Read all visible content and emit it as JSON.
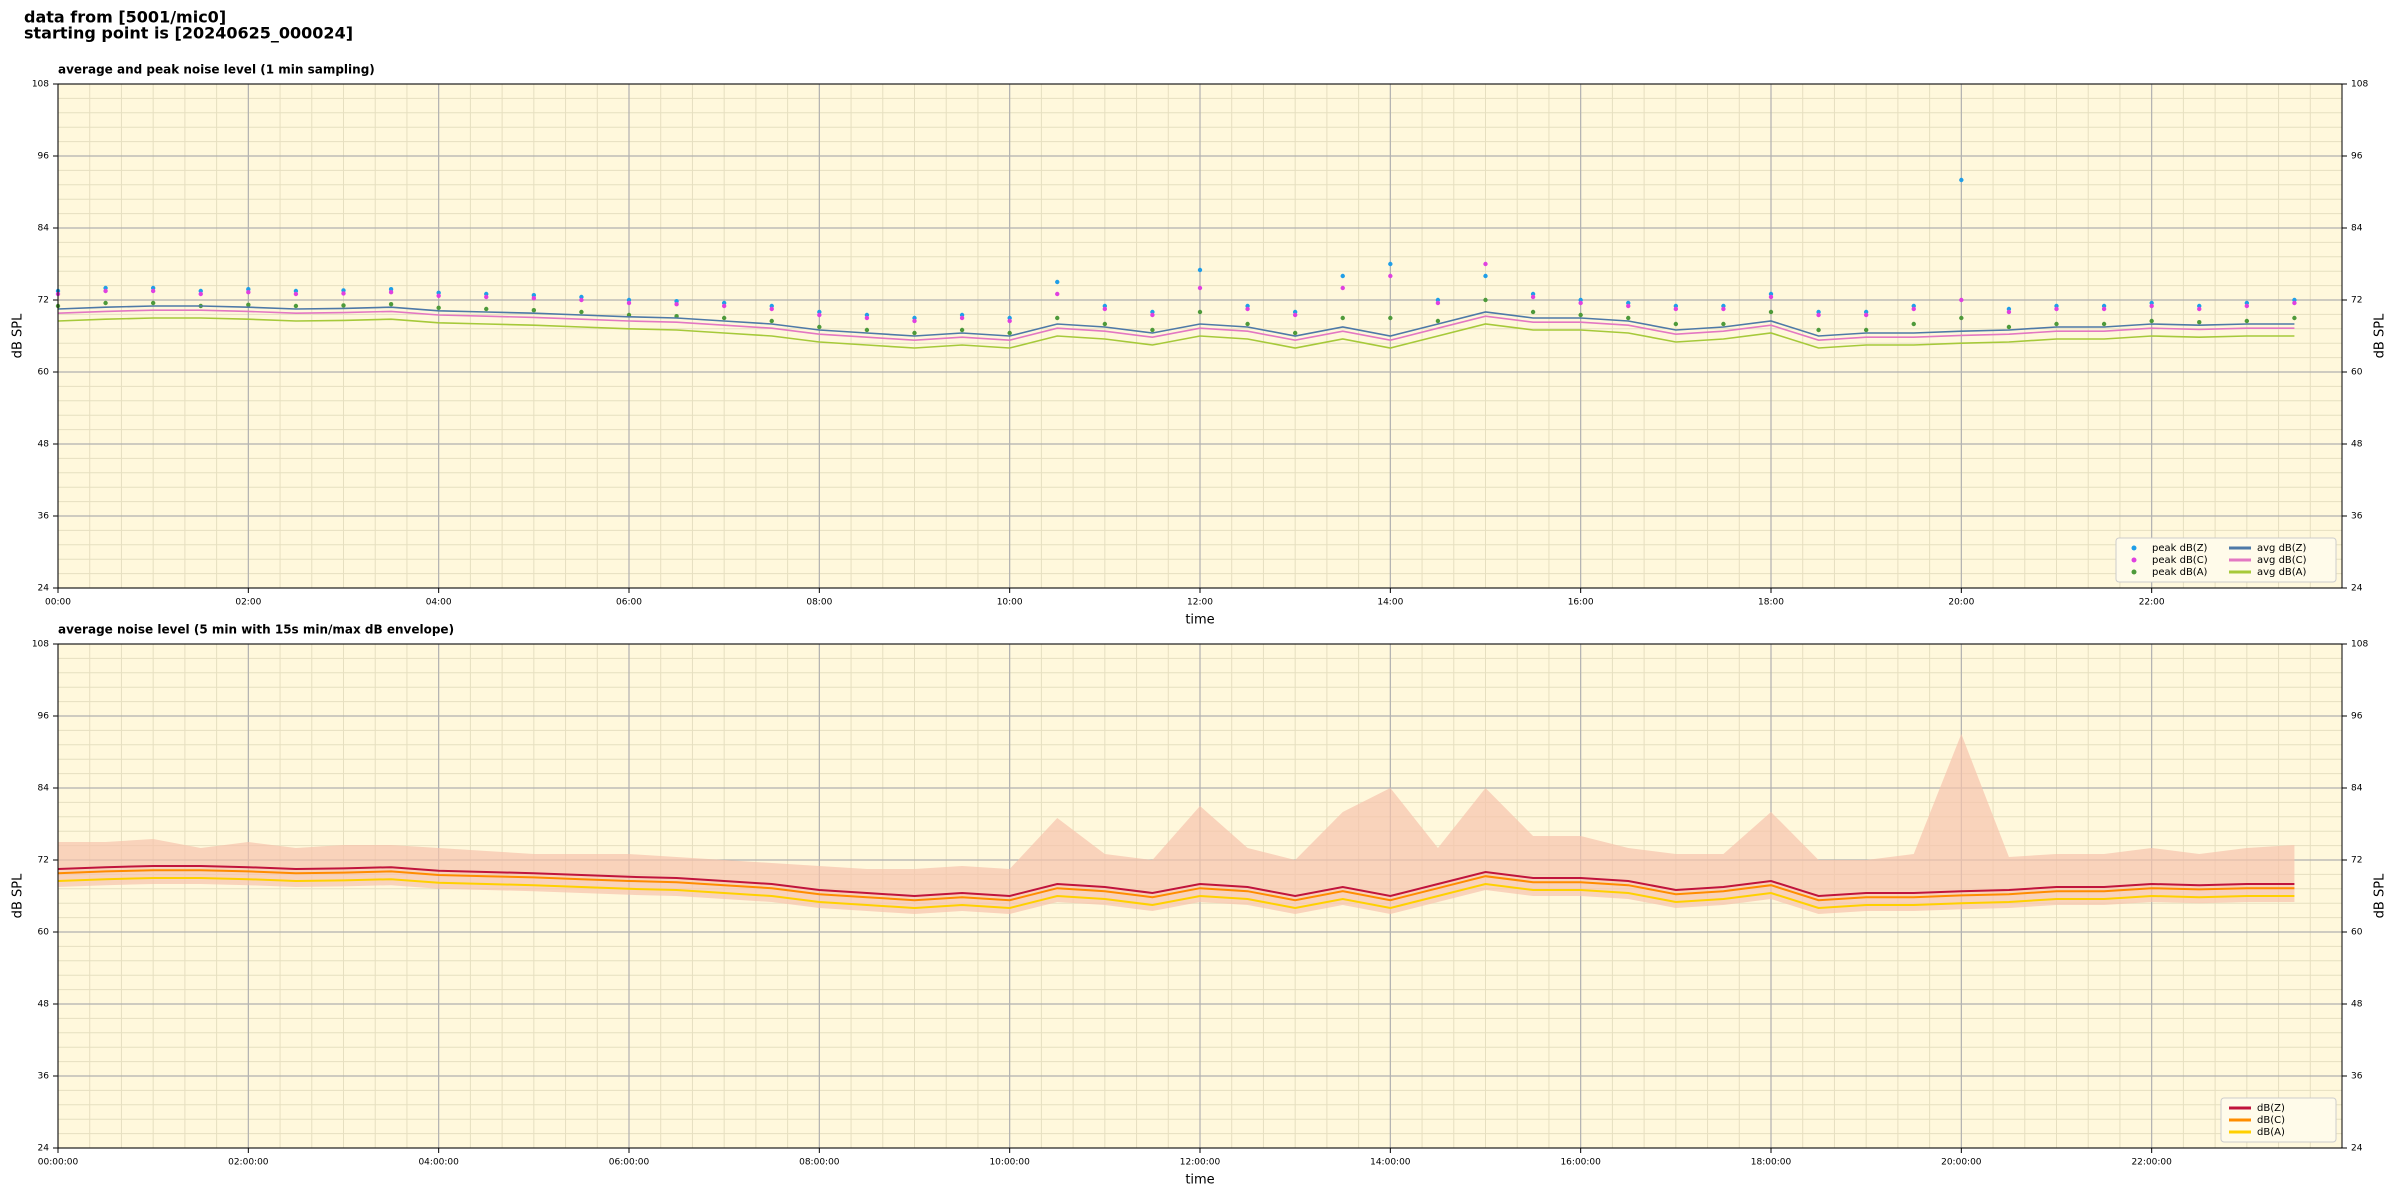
{
  "header": {
    "title": [
      "data from [5001/mic0]",
      "starting point is [20240625_000024]"
    ]
  },
  "chart_data": [
    {
      "type": "line",
      "title": "average and peak noise level (1 min sampling)",
      "xlabel": "time",
      "ylabel": "dB SPL",
      "xlim": [
        0,
        24
      ],
      "ylim": [
        24,
        108
      ],
      "xticks": [
        {
          "value": 0,
          "label": "00:00"
        },
        {
          "value": 2,
          "label": "02:00"
        },
        {
          "value": 4,
          "label": "04:00"
        },
        {
          "value": 6,
          "label": "06:00"
        },
        {
          "value": 8,
          "label": "08:00"
        },
        {
          "value": 10,
          "label": "10:00"
        },
        {
          "value": 12,
          "label": "12:00"
        },
        {
          "value": 14,
          "label": "14:00"
        },
        {
          "value": 16,
          "label": "16:00"
        },
        {
          "value": 18,
          "label": "18:00"
        },
        {
          "value": 20,
          "label": "20:00"
        },
        {
          "value": 22,
          "label": "22:00"
        }
      ],
      "yticks": [
        24,
        36,
        48,
        60,
        72,
        84,
        96,
        108
      ],
      "grid": true,
      "legend": "lower right",
      "legend_columns": 2,
      "x": [
        0,
        0.5,
        1,
        1.5,
        2,
        2.5,
        3,
        3.5,
        4,
        4.5,
        5,
        5.5,
        6,
        6.5,
        7,
        7.5,
        8,
        8.5,
        9,
        9.5,
        10,
        10.5,
        11,
        11.5,
        12,
        12.5,
        13,
        13.5,
        14,
        14.5,
        15,
        15.5,
        16,
        16.5,
        17,
        17.5,
        18,
        18.5,
        19,
        19.5,
        20,
        20.5,
        21,
        21.5,
        22,
        22.5,
        23,
        23.5
      ],
      "series": [
        {
          "name": "peak dB(Z)",
          "color": "#1f9ee8",
          "mode": "markers",
          "values": [
            73.5,
            74,
            74,
            73.5,
            73.8,
            73.5,
            73.6,
            73.8,
            73.2,
            73,
            72.8,
            72.5,
            72,
            71.8,
            71.5,
            71,
            70,
            69.5,
            69,
            69.5,
            69,
            75,
            71,
            70,
            77,
            71,
            70,
            76,
            78,
            72,
            76,
            73,
            72,
            71.5,
            71,
            71,
            73,
            70,
            70,
            71,
            92,
            70.5,
            71,
            71,
            71.5,
            71,
            71.5,
            72
          ]
        },
        {
          "name": "peak dB(C)",
          "color": "#e040e0",
          "mode": "markers",
          "values": [
            73,
            73.5,
            73.5,
            73,
            73.3,
            73,
            73.1,
            73.3,
            72.7,
            72.5,
            72.3,
            72,
            71.5,
            71.3,
            71,
            70.5,
            69.5,
            69,
            68.5,
            69,
            68.5,
            73,
            70.5,
            69.5,
            74,
            70.5,
            69.5,
            74,
            76,
            71.5,
            78,
            72.5,
            71.5,
            71,
            70.5,
            70.5,
            72.5,
            69.5,
            69.5,
            70.5,
            72,
            70,
            70.5,
            70.5,
            71,
            70.5,
            71,
            71.5
          ]
        },
        {
          "name": "peak dB(A)",
          "color": "#4e9a3a",
          "mode": "markers",
          "values": [
            71,
            71.5,
            71.5,
            71,
            71.2,
            71,
            71.1,
            71.3,
            70.7,
            70.5,
            70.3,
            70,
            69.5,
            69.3,
            69,
            68.5,
            67.5,
            67,
            66.5,
            67,
            66.5,
            69,
            68,
            67,
            70,
            68,
            66.5,
            69,
            69,
            68.5,
            72,
            70,
            69.5,
            69,
            68,
            68,
            70,
            67,
            67,
            68,
            69,
            67.5,
            68,
            68,
            68.5,
            68.3,
            68.5,
            69
          ]
        },
        {
          "name": "avg dB(Z)",
          "color": "#4e79a7",
          "mode": "line",
          "values": [
            70.5,
            70.8,
            71,
            71,
            70.8,
            70.5,
            70.6,
            70.8,
            70.2,
            70,
            69.8,
            69.5,
            69.2,
            69,
            68.5,
            68,
            67,
            66.5,
            66,
            66.5,
            66,
            68,
            67.5,
            66.5,
            68,
            67.5,
            66,
            67.5,
            66,
            68,
            70,
            69,
            69,
            68.5,
            67,
            67.5,
            68.5,
            66,
            66.5,
            66.5,
            66.8,
            67,
            67.5,
            67.5,
            68,
            67.8,
            68,
            68
          ]
        },
        {
          "name": "avg dB(C)",
          "color": "#e377c2",
          "mode": "line",
          "values": [
            69.8,
            70.1,
            70.3,
            70.3,
            70.1,
            69.8,
            69.9,
            70.1,
            69.5,
            69.3,
            69.1,
            68.8,
            68.5,
            68.3,
            67.8,
            67.3,
            66.3,
            65.8,
            65.3,
            65.8,
            65.3,
            67.3,
            66.8,
            65.8,
            67.3,
            66.8,
            65.3,
            66.8,
            65.3,
            67.3,
            69.3,
            68.3,
            68.3,
            67.8,
            66.3,
            66.8,
            67.8,
            65.3,
            65.8,
            65.8,
            66.1,
            66.3,
            66.8,
            66.8,
            67.3,
            67.1,
            67.3,
            67.3
          ]
        },
        {
          "name": "avg dB(A)",
          "color": "#a6c93a",
          "mode": "line",
          "values": [
            68.5,
            68.8,
            69,
            69,
            68.8,
            68.5,
            68.6,
            68.8,
            68.2,
            68,
            67.8,
            67.5,
            67.2,
            67,
            66.5,
            66,
            65,
            64.5,
            64,
            64.5,
            64,
            66,
            65.5,
            64.5,
            66,
            65.5,
            64,
            65.5,
            64,
            66,
            68,
            67,
            67,
            66.5,
            65,
            65.5,
            66.5,
            64,
            64.5,
            64.5,
            64.8,
            65,
            65.5,
            65.5,
            66,
            65.8,
            66,
            66
          ]
        }
      ]
    },
    {
      "type": "line",
      "title": "average noise level (5 min with 15s min/max dB envelope)",
      "xlabel": "time",
      "ylabel": "dB SPL",
      "xlim": [
        0,
        24
      ],
      "ylim": [
        24,
        108
      ],
      "xticks": [
        {
          "value": 0,
          "label": "00:00:00"
        },
        {
          "value": 2,
          "label": "02:00:00"
        },
        {
          "value": 4,
          "label": "04:00:00"
        },
        {
          "value": 6,
          "label": "06:00:00"
        },
        {
          "value": 8,
          "label": "08:00:00"
        },
        {
          "value": 10,
          "label": "10:00:00"
        },
        {
          "value": 12,
          "label": "12:00:00"
        },
        {
          "value": 14,
          "label": "14:00:00"
        },
        {
          "value": 16,
          "label": "16:00:00"
        },
        {
          "value": 18,
          "label": "18:00:00"
        },
        {
          "value": 20,
          "label": "20:00:00"
        },
        {
          "value": 22,
          "label": "22:00:00"
        }
      ],
      "yticks": [
        24,
        36,
        48,
        60,
        72,
        84,
        96,
        108
      ],
      "grid": true,
      "legend": "lower right",
      "legend_columns": 1,
      "x": [
        0,
        0.5,
        1,
        1.5,
        2,
        2.5,
        3,
        3.5,
        4,
        4.5,
        5,
        5.5,
        6,
        6.5,
        7,
        7.5,
        8,
        8.5,
        9,
        9.5,
        10,
        10.5,
        11,
        11.5,
        12,
        12.5,
        13,
        13.5,
        14,
        14.5,
        15,
        15.5,
        16,
        16.5,
        17,
        17.5,
        18,
        18.5,
        19,
        19.5,
        20,
        20.5,
        21,
        21.5,
        22,
        22.5,
        23,
        23.5
      ],
      "envelope": {
        "color": "#f6c3ad",
        "max": [
          75,
          75,
          75.5,
          74,
          75,
          74,
          74.5,
          74.5,
          74,
          73.5,
          73,
          73,
          73,
          72.5,
          72,
          71.5,
          71,
          70.5,
          70.5,
          71,
          70.5,
          79,
          73,
          72,
          81,
          74,
          72,
          80,
          84,
          74,
          84,
          76,
          76,
          74,
          73,
          73,
          80,
          72,
          72,
          73,
          93,
          72.5,
          73,
          73,
          74,
          73,
          74,
          74.5
        ],
        "min": [
          67.5,
          67.8,
          68,
          68,
          67.8,
          67.5,
          67.6,
          67.8,
          67.2,
          67,
          66.8,
          66.5,
          66.2,
          66,
          65.5,
          65,
          64,
          63.5,
          63,
          63.5,
          63,
          65,
          64.5,
          63.5,
          65,
          64.5,
          63,
          64.5,
          63,
          65,
          67,
          66,
          66,
          65.5,
          64,
          64.5,
          65.5,
          63,
          63.5,
          63.5,
          63.8,
          64,
          64.5,
          64.5,
          65,
          64.8,
          65,
          65
        ]
      },
      "series": [
        {
          "name": "dB(Z)",
          "color": "#c0143c",
          "mode": "line",
          "values": [
            70.5,
            70.8,
            71,
            71,
            70.8,
            70.5,
            70.6,
            70.8,
            70.2,
            70,
            69.8,
            69.5,
            69.2,
            69,
            68.5,
            68,
            67,
            66.5,
            66,
            66.5,
            66,
            68,
            67.5,
            66.5,
            68,
            67.5,
            66,
            67.5,
            66,
            68,
            70,
            69,
            69,
            68.5,
            67,
            67.5,
            68.5,
            66,
            66.5,
            66.5,
            66.8,
            67,
            67.5,
            67.5,
            68,
            67.8,
            68,
            68
          ]
        },
        {
          "name": "dB(C)",
          "color": "#ff8c00",
          "mode": "line",
          "values": [
            69.8,
            70.1,
            70.3,
            70.3,
            70.1,
            69.8,
            69.9,
            70.1,
            69.5,
            69.3,
            69.1,
            68.8,
            68.5,
            68.3,
            67.8,
            67.3,
            66.3,
            65.8,
            65.3,
            65.8,
            65.3,
            67.3,
            66.8,
            65.8,
            67.3,
            66.8,
            65.3,
            66.8,
            65.3,
            67.3,
            69.3,
            68.3,
            68.3,
            67.8,
            66.3,
            66.8,
            67.8,
            65.3,
            65.8,
            65.8,
            66.1,
            66.3,
            66.8,
            66.8,
            67.3,
            67.1,
            67.3,
            67.3
          ]
        },
        {
          "name": "dB(A)",
          "color": "#ffd000",
          "mode": "line",
          "values": [
            68.5,
            68.8,
            69,
            69,
            68.8,
            68.5,
            68.6,
            68.8,
            68.2,
            68,
            67.8,
            67.5,
            67.2,
            67,
            66.5,
            66,
            65,
            64.5,
            64,
            64.5,
            64,
            66,
            65.5,
            64.5,
            66,
            65.5,
            64,
            65.5,
            64,
            66,
            68,
            67,
            67,
            66.5,
            65,
            65.5,
            66.5,
            64,
            64.5,
            64.5,
            64.8,
            65,
            65.5,
            65.5,
            66,
            65.8,
            66,
            66
          ]
        }
      ]
    }
  ]
}
